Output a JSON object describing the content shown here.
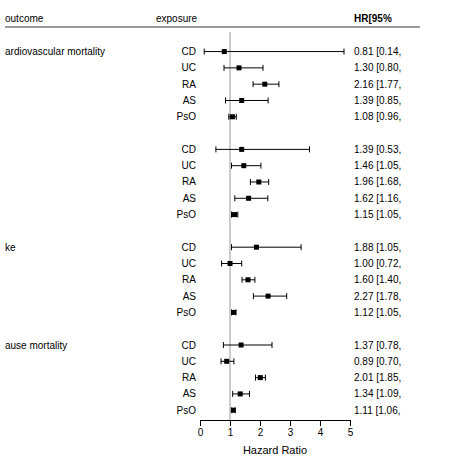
{
  "chart_data": {
    "type": "forest",
    "xlabel": "Hazard Ratio",
    "xlim": [
      0,
      5
    ],
    "xticks": [
      0,
      1,
      2,
      3,
      4,
      5
    ],
    "reference_line": 1.0,
    "column_headers": [
      "outcome",
      "exposure",
      "HR[95%"
    ],
    "color": "#000000",
    "groups": [
      {
        "label": "ardiovascular mortality",
        "rows": [
          {
            "exposure": "CD",
            "value": 0.81,
            "ci_lo": 0.14,
            "ci_hi": 4.8,
            "label": "0.81 [0.14,"
          },
          {
            "exposure": "UC",
            "value": 1.3,
            "ci_lo": 0.8,
            "ci_hi": 2.1,
            "label": "1.30 [0.80,"
          },
          {
            "exposure": "RA",
            "value": 2.16,
            "ci_lo": 1.77,
            "ci_hi": 2.63,
            "label": "2.16 [1.77,"
          },
          {
            "exposure": "AS",
            "value": 1.39,
            "ci_lo": 0.85,
            "ci_hi": 2.27,
            "label": "1.39 [0.85,"
          },
          {
            "exposure": "PsO",
            "value": 1.08,
            "ci_lo": 0.96,
            "ci_hi": 1.21,
            "label": "1.08 [0.96,"
          }
        ]
      },
      {
        "label": null,
        "rows": [
          {
            "exposure": "CD",
            "value": 1.39,
            "ci_lo": 0.53,
            "ci_hi": 3.65,
            "label": "1.39 [0.53,"
          },
          {
            "exposure": "UC",
            "value": 1.46,
            "ci_lo": 1.05,
            "ci_hi": 2.03,
            "label": "1.46 [1.05,"
          },
          {
            "exposure": "RA",
            "value": 1.96,
            "ci_lo": 1.68,
            "ci_hi": 2.29,
            "label": "1.96 [1.68,"
          },
          {
            "exposure": "AS",
            "value": 1.62,
            "ci_lo": 1.16,
            "ci_hi": 2.26,
            "label": "1.62 [1.16,"
          },
          {
            "exposure": "PsO",
            "value": 1.15,
            "ci_lo": 1.05,
            "ci_hi": 1.26,
            "label": "1.15 [1.05,"
          }
        ]
      },
      {
        "label": "ke",
        "rows": [
          {
            "exposure": "CD",
            "value": 1.88,
            "ci_lo": 1.05,
            "ci_hi": 3.37,
            "label": "1.88 [1.05,"
          },
          {
            "exposure": "UC",
            "value": 1.0,
            "ci_lo": 0.72,
            "ci_hi": 1.39,
            "label": "1.00 [0.72,"
          },
          {
            "exposure": "RA",
            "value": 1.6,
            "ci_lo": 1.4,
            "ci_hi": 1.83,
            "label": "1.60 [1.40,"
          },
          {
            "exposure": "AS",
            "value": 2.27,
            "ci_lo": 1.78,
            "ci_hi": 2.89,
            "label": "2.27 [1.78,"
          },
          {
            "exposure": "PsO",
            "value": 1.12,
            "ci_lo": 1.05,
            "ci_hi": 1.2,
            "label": "1.12 [1.05,"
          }
        ]
      },
      {
        "label": "ause mortality",
        "rows": [
          {
            "exposure": "CD",
            "value": 1.37,
            "ci_lo": 0.78,
            "ci_hi": 2.4,
            "label": "1.37 [0.78,"
          },
          {
            "exposure": "UC",
            "value": 0.89,
            "ci_lo": 0.7,
            "ci_hi": 1.13,
            "label": "0.89 [0.70,"
          },
          {
            "exposure": "RA",
            "value": 2.01,
            "ci_lo": 1.85,
            "ci_hi": 2.18,
            "label": "2.01 [1.85,"
          },
          {
            "exposure": "AS",
            "value": 1.34,
            "ci_lo": 1.09,
            "ci_hi": 1.65,
            "label": "1.34 [1.09,"
          },
          {
            "exposure": "PsO",
            "value": 1.11,
            "ci_lo": 1.06,
            "ci_hi": 1.17,
            "label": "1.11 [1.06,"
          }
        ]
      }
    ]
  }
}
